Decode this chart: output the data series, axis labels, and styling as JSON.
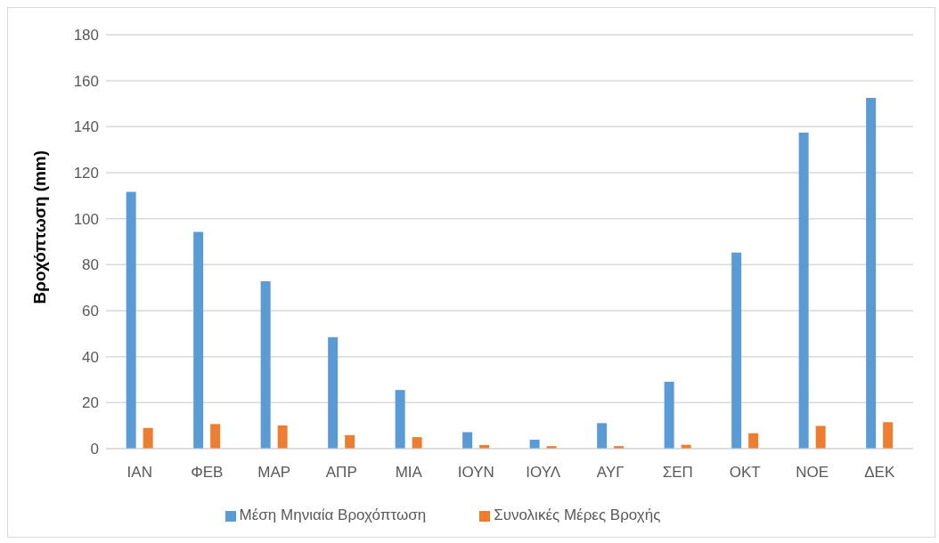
{
  "chart_data": {
    "type": "bar",
    "ylabel": "Βροχόπτωση (mm)",
    "categories": [
      "ΙΑΝ",
      "ΦΕΒ",
      "ΜΑΡ",
      "ΑΠΡ",
      "ΜΙΑ",
      "ΙΟΥΝ",
      "ΙΟΥΛ",
      "ΑΥΓ",
      "ΣΕΠ",
      "ΟΚΤ",
      "ΝΟΕ",
      "ΔΕΚ"
    ],
    "series": [
      {
        "name": "Μέση Μηνιαία Βροχόπτωση",
        "color": "#5b9bd5",
        "values": [
          111.7,
          94.3,
          72.8,
          48.5,
          25.5,
          7.2,
          3.9,
          11.1,
          29.1,
          85.3,
          137.4,
          152.5
        ]
      },
      {
        "name": "Συνολικές Μέρες Βροχής",
        "color": "#ed7d31",
        "values": [
          9.0,
          10.7,
          10.1,
          5.9,
          5.0,
          1.6,
          1.1,
          1.1,
          1.7,
          6.7,
          9.9,
          11.5
        ]
      }
    ],
    "ylim": [
      0,
      180
    ],
    "yticks": [
      0,
      20,
      40,
      60,
      80,
      100,
      120,
      140,
      160,
      180
    ],
    "grid": "y",
    "legend": "bottom"
  }
}
